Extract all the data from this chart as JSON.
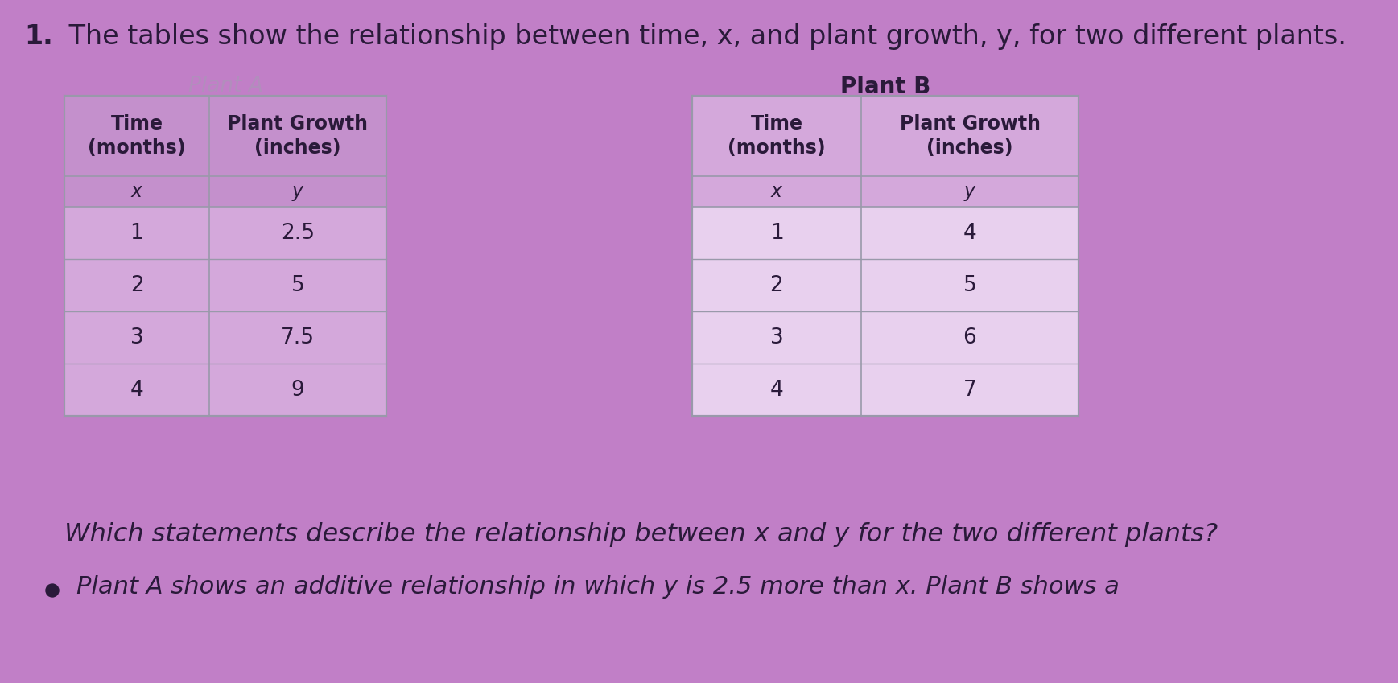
{
  "background_color": "#c17fc7",
  "title_number": "1.",
  "title_text": " The tables show the relationship between time, x, and plant growth, y, for two different plants.",
  "plant_a_label": "Plant A",
  "plant_b_label": "Plant B",
  "plant_a_data": [
    [
      1,
      "2.5"
    ],
    [
      2,
      "5"
    ],
    [
      3,
      "7.5"
    ],
    [
      4,
      "9"
    ]
  ],
  "plant_b_data": [
    [
      1,
      4
    ],
    [
      2,
      5
    ],
    [
      3,
      6
    ],
    [
      4,
      7
    ]
  ],
  "question_text": "Which statements describe the relationship between x and y for the two different plants?",
  "answer_text": "Plant A shows an additive relationship in which y is 2.5 more than x. Plant B shows a",
  "table_a_bg_data": "#d4a8db",
  "table_a_bg_header": "#c490cc",
  "table_b_bg_data": "#e8d0ee",
  "table_b_bg_header": "#d4a8db",
  "table_border": "#9999aa",
  "dark_text": "#2a1a3a",
  "medium_text": "#3a2a4a",
  "faded_text": "#b090bb"
}
